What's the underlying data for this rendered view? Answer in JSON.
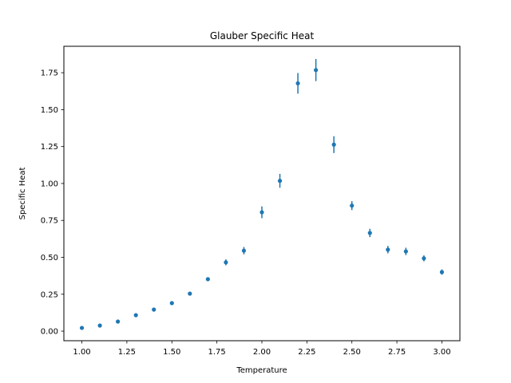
{
  "chart_data": {
    "type": "scatter",
    "title": "Glauber Specific Heat",
    "xlabel": "Temperature",
    "ylabel": "Specific Heat",
    "xlim": [
      0.9,
      3.1
    ],
    "ylim": [
      -0.0647,
      1.929
    ],
    "xticks": [
      "1.00",
      "1.25",
      "1.50",
      "1.75",
      "2.00",
      "2.25",
      "2.50",
      "2.75",
      "3.00"
    ],
    "yticks": [
      "0.00",
      "0.25",
      "0.50",
      "0.75",
      "1.00",
      "1.25",
      "1.50",
      "1.75"
    ],
    "grid": false,
    "series": [
      {
        "color": "#1f77b4",
        "x": [
          1.0,
          1.1,
          1.2,
          1.3,
          1.4,
          1.5,
          1.6,
          1.7,
          1.8,
          1.9,
          2.0,
          2.1,
          2.2,
          2.3,
          2.4,
          2.5,
          2.6,
          2.7,
          2.8,
          2.9,
          3.0
        ],
        "y": [
          0.022,
          0.038,
          0.065,
          0.108,
          0.146,
          0.19,
          0.254,
          0.352,
          0.466,
          0.545,
          0.805,
          1.018,
          1.678,
          1.768,
          1.263,
          0.85,
          0.665,
          0.552,
          0.54,
          0.493,
          0.4
        ],
        "yerr": [
          0.004,
          0.005,
          0.006,
          0.008,
          0.01,
          0.01,
          0.012,
          0.012,
          0.02,
          0.025,
          0.04,
          0.047,
          0.07,
          0.075,
          0.057,
          0.03,
          0.028,
          0.025,
          0.025,
          0.02,
          0.018
        ]
      }
    ]
  }
}
